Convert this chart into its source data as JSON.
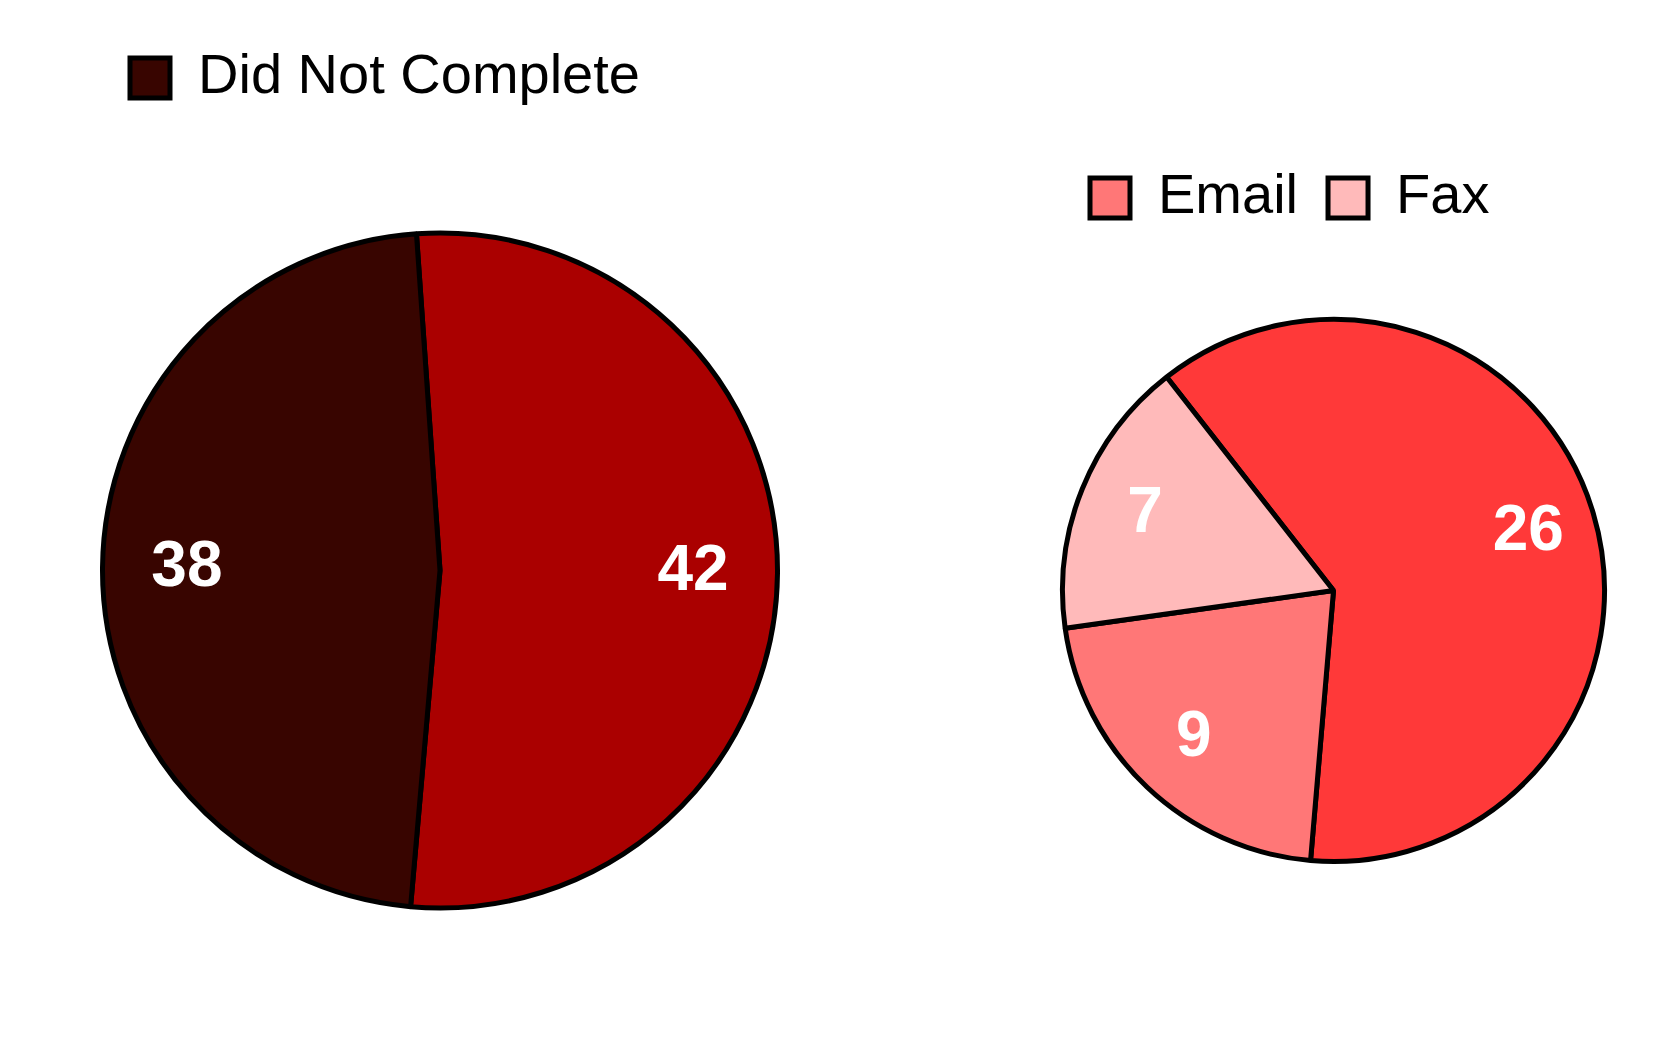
{
  "chart_data": [
    {
      "type": "pie",
      "categories": [
        null,
        "Did Not Complete"
      ],
      "values": [
        42,
        38
      ],
      "colors": [
        "#aa0000",
        "#380500"
      ],
      "data_labels": true,
      "legend": "top"
    },
    {
      "type": "pie",
      "categories": [
        null,
        "Email",
        "Fax"
      ],
      "values": [
        26,
        9,
        7
      ],
      "colors": [
        "#ff3939",
        "#ff7777",
        "#ffbaba"
      ],
      "data_labels": true,
      "legend": "top"
    }
  ]
}
